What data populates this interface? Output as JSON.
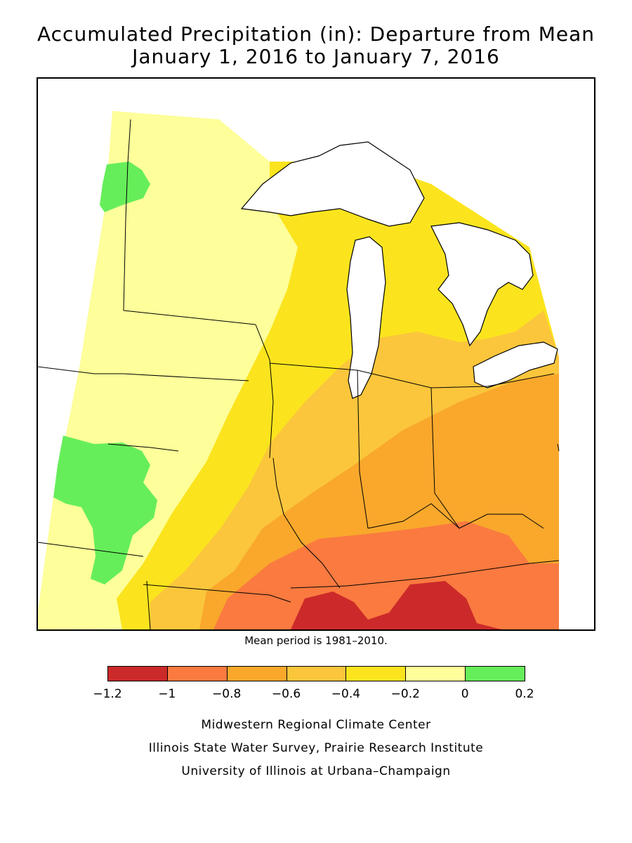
{
  "title": {
    "line1": "Accumulated Precipitation (in): Departure from Mean",
    "line2": "January 1, 2016 to January 7, 2016"
  },
  "map": {
    "region": "Upper Midwest / Great Lakes",
    "colors": {
      "band_-1.2_-1": "#cc2a2a",
      "band_-1_-0.8": "#fa7a40",
      "band_-0.8_-0.6": "#f9a82c",
      "band_-0.6_-0.4": "#fbc63c",
      "band_-0.4_-0.2": "#fbe41e",
      "band_-0.2_0": "#fefe9a",
      "band_0_0.2": "#66ee5a",
      "water": "#ffffff",
      "borders": "#000000"
    }
  },
  "note": "Mean period is 1981–2010.",
  "legend": {
    "ticks": [
      "−1.2",
      "−1",
      "−0.8",
      "−0.6",
      "−0.4",
      "−0.2",
      "0",
      "0.2"
    ],
    "bins": [
      {
        "from": -1.2,
        "to": -1.0,
        "color": "#cc2a2a"
      },
      {
        "from": -1.0,
        "to": -0.8,
        "color": "#fa7a40"
      },
      {
        "from": -0.8,
        "to": -0.6,
        "color": "#f9a82c"
      },
      {
        "from": -0.6,
        "to": -0.4,
        "color": "#fbc63c"
      },
      {
        "from": -0.4,
        "to": -0.2,
        "color": "#fbe41e"
      },
      {
        "from": -0.2,
        "to": 0.0,
        "color": "#fefe9a"
      },
      {
        "from": 0.0,
        "to": 0.2,
        "color": "#66ee5a"
      }
    ]
  },
  "credits": {
    "line1": "Midwestern Regional Climate Center",
    "line2": "Illinois State Water Survey, Prairie Research Institute",
    "line3": "University of Illinois at Urbana–Champaign"
  }
}
